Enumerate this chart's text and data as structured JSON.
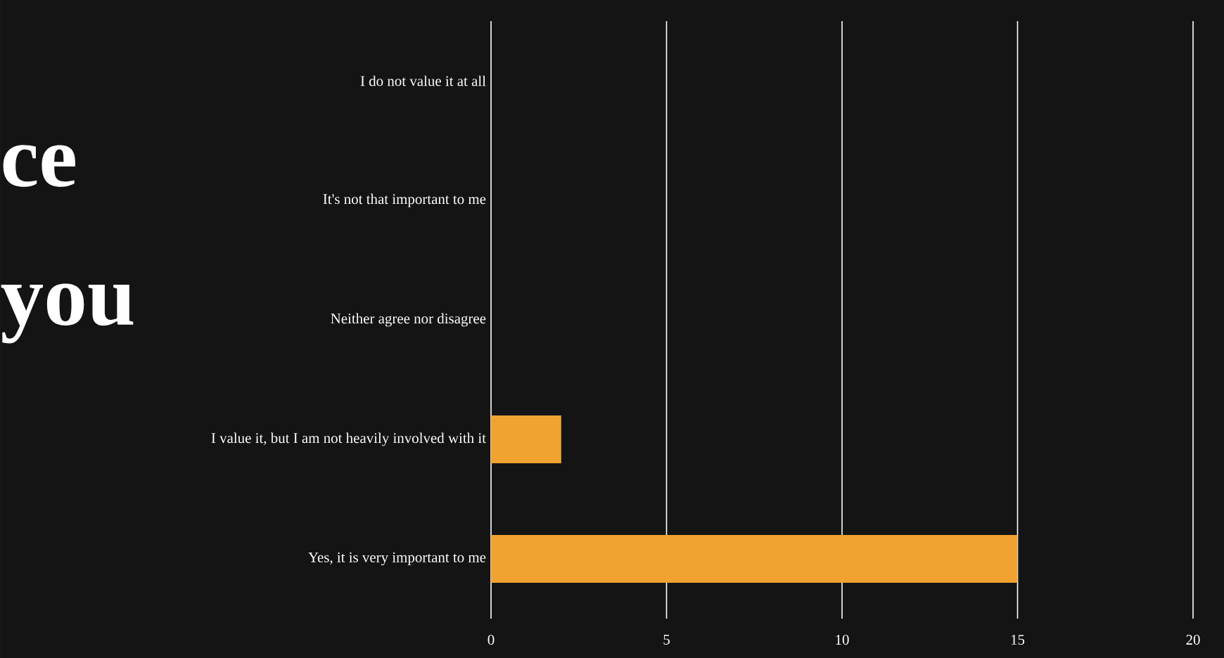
{
  "chart_data": {
    "type": "bar",
    "orientation": "horizontal",
    "categories": [
      "I do not value it at all",
      "It's not that important to me",
      "Neither agree nor disagree",
      "I value it, but I am not heavily involved with it",
      "Yes, it is very important to me"
    ],
    "values": [
      0,
      0,
      0,
      2,
      15
    ],
    "color": "#f0a330",
    "xlim": [
      0,
      20
    ],
    "xticks": [
      0,
      5,
      10,
      15,
      20
    ],
    "grid": "x",
    "annotations": [
      "ce",
      "you"
    ]
  }
}
